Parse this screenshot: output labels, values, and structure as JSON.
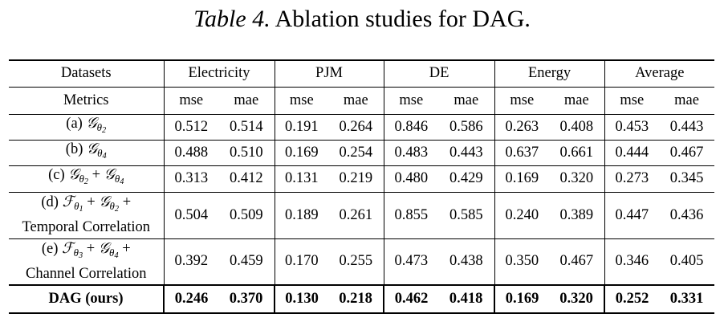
{
  "caption": {
    "label": "Table 4.",
    "text": "Ablation studies for DAG."
  },
  "header": {
    "datasets_label": "Datasets",
    "metrics_label": "Metrics",
    "groups": [
      "Electricity",
      "PJM",
      "DE",
      "Energy",
      "Average"
    ],
    "metrics": [
      "mse",
      "mae"
    ]
  },
  "rows": [
    {
      "prefix": "(a)",
      "terms": [
        {
          "sym": "𝒢",
          "sub": "θ",
          "subsub": "2"
        }
      ],
      "suffix": "",
      "values": [
        "0.512",
        "0.514",
        "0.191",
        "0.264",
        "0.846",
        "0.586",
        "0.263",
        "0.408",
        "0.453",
        "0.443"
      ]
    },
    {
      "prefix": "(b)",
      "terms": [
        {
          "sym": "𝒢",
          "sub": "θ",
          "subsub": "4"
        }
      ],
      "suffix": "",
      "values": [
        "0.488",
        "0.510",
        "0.169",
        "0.254",
        "0.483",
        "0.443",
        "0.637",
        "0.661",
        "0.444",
        "0.467"
      ]
    },
    {
      "prefix": "(c)",
      "terms": [
        {
          "sym": "𝒢",
          "sub": "θ",
          "subsub": "2"
        },
        {
          "sym": "𝒢",
          "sub": "θ",
          "subsub": "4"
        }
      ],
      "suffix": "",
      "values": [
        "0.313",
        "0.412",
        "0.131",
        "0.219",
        "0.480",
        "0.429",
        "0.169",
        "0.320",
        "0.273",
        "0.345"
      ]
    },
    {
      "prefix": "(d)",
      "terms": [
        {
          "sym": "ℱ",
          "sub": "θ",
          "subsub": "1"
        },
        {
          "sym": "𝒢",
          "sub": "θ",
          "subsub": "2"
        }
      ],
      "suffix": "Temporal Correlation",
      "values": [
        "0.504",
        "0.509",
        "0.189",
        "0.261",
        "0.855",
        "0.585",
        "0.240",
        "0.389",
        "0.447",
        "0.436"
      ]
    },
    {
      "prefix": "(e)",
      "terms": [
        {
          "sym": "ℱ",
          "sub": "θ",
          "subsub": "3"
        },
        {
          "sym": "𝒢",
          "sub": "θ",
          "subsub": "4"
        }
      ],
      "suffix": "Channel Correlation",
      "values": [
        "0.392",
        "0.459",
        "0.170",
        "0.255",
        "0.473",
        "0.438",
        "0.350",
        "0.467",
        "0.346",
        "0.405"
      ]
    }
  ],
  "final_row": {
    "label": "DAG (ours)",
    "values": [
      "0.246",
      "0.370",
      "0.130",
      "0.218",
      "0.462",
      "0.418",
      "0.169",
      "0.320",
      "0.252",
      "0.331"
    ]
  }
}
